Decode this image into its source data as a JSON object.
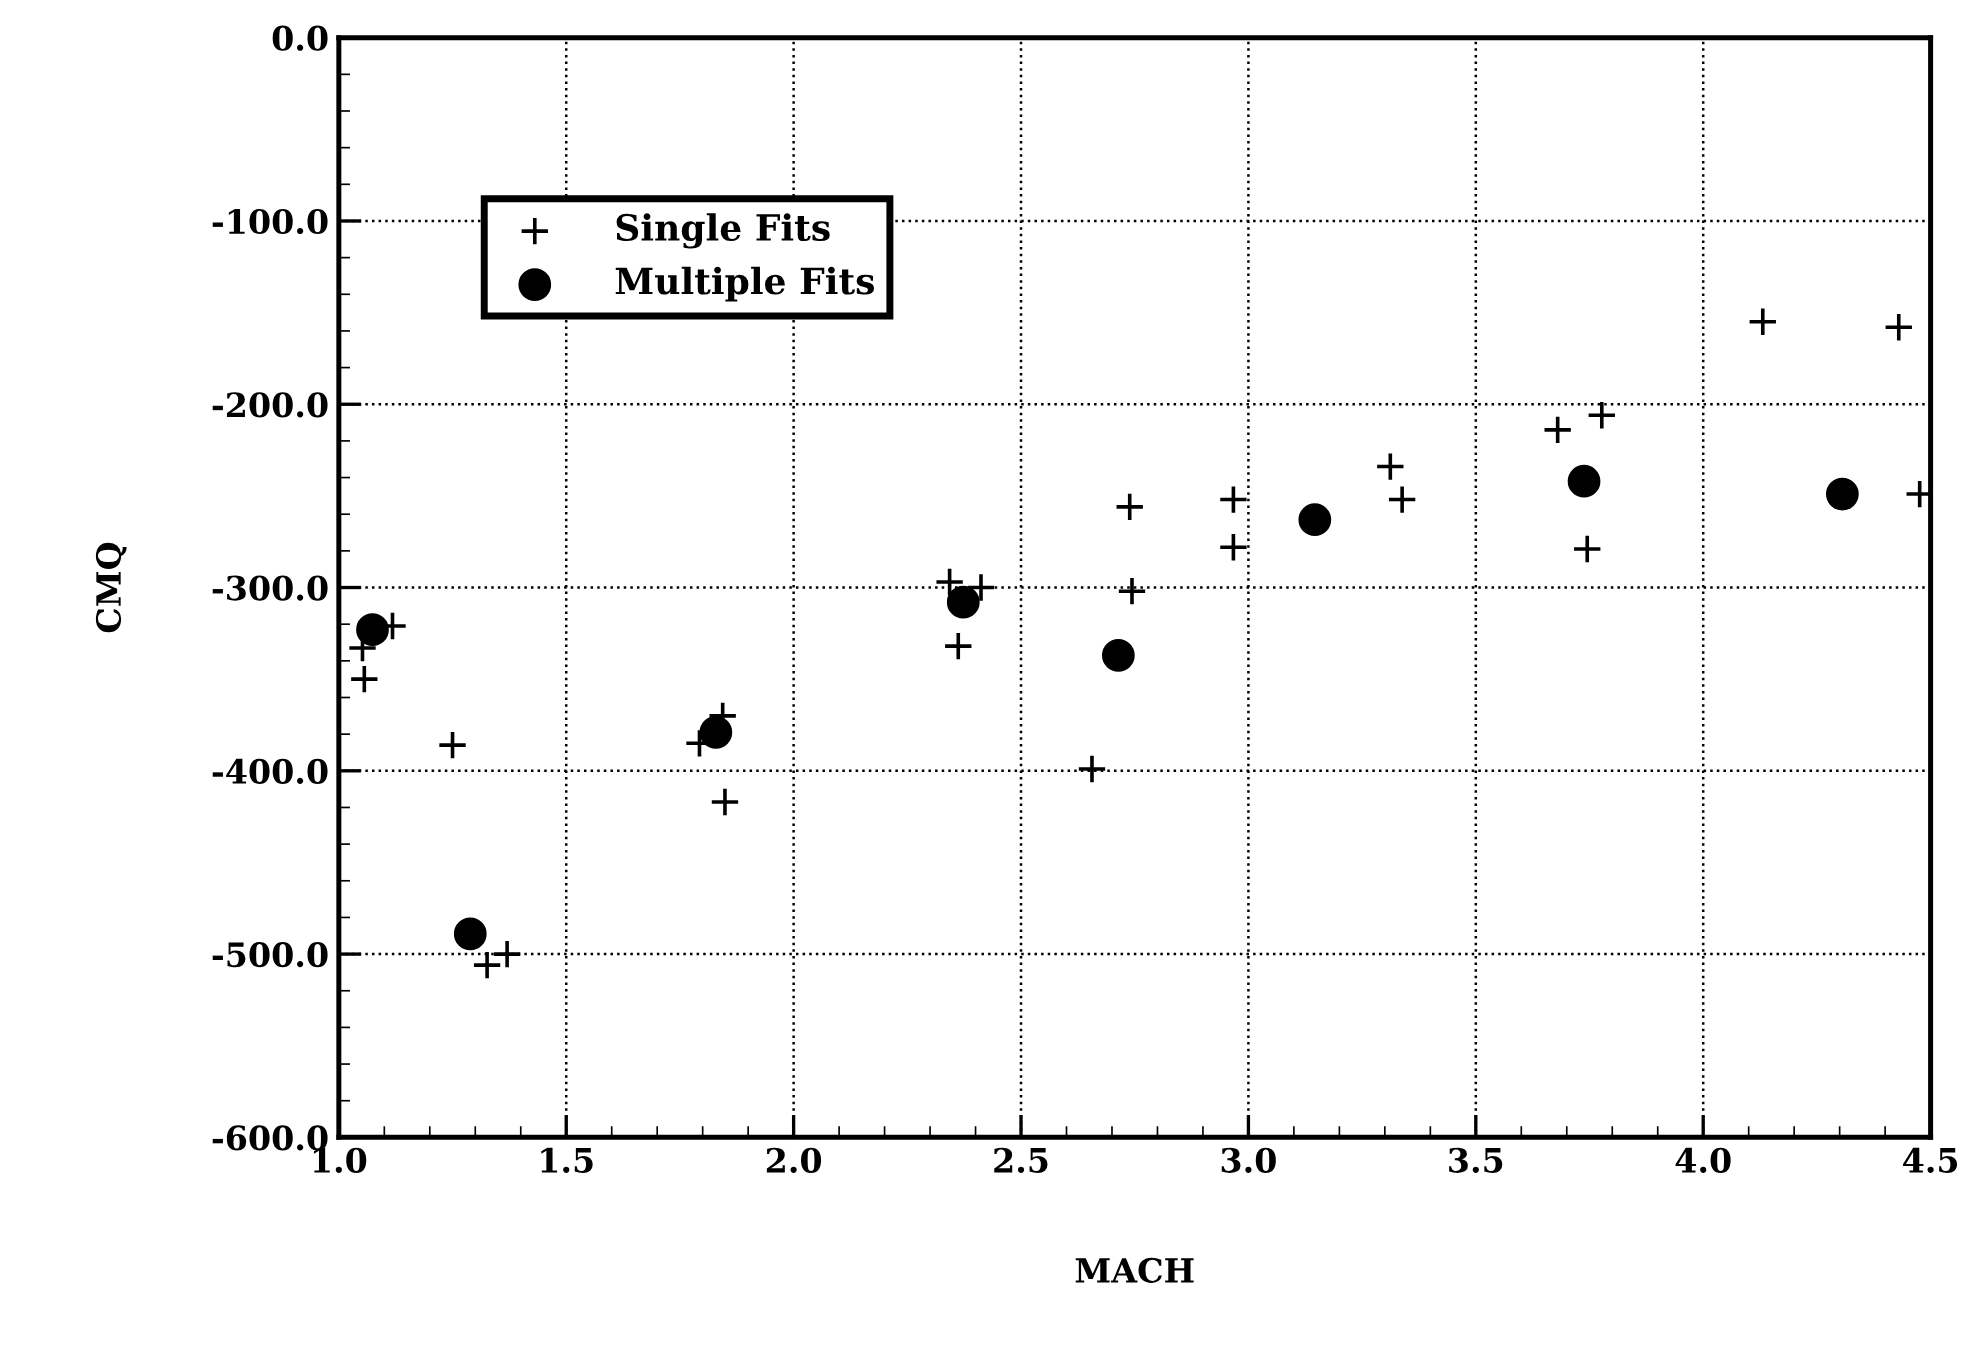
{
  "chart_data": {
    "type": "scatter",
    "xlabel": "MACH",
    "ylabel": "CMQ",
    "xlim": [
      1.0,
      4.5
    ],
    "ylim": [
      -600,
      0
    ],
    "xticks": [
      {
        "value": 1.0,
        "label": "1.0"
      },
      {
        "value": 1.5,
        "label": "1.5"
      },
      {
        "value": 2.0,
        "label": "2.0"
      },
      {
        "value": 2.5,
        "label": "2.5"
      },
      {
        "value": 3.0,
        "label": "3.0"
      },
      {
        "value": 3.5,
        "label": "3.5"
      },
      {
        "value": 4.0,
        "label": "4.0"
      },
      {
        "value": 4.5,
        "label": "4.5"
      }
    ],
    "yticks": [
      {
        "value": -600,
        "label": "-600.0"
      },
      {
        "value": -500,
        "label": "-500.0"
      },
      {
        "value": -400,
        "label": "-400.0"
      },
      {
        "value": -300,
        "label": "-300.0"
      },
      {
        "value": -200,
        "label": "-200.0"
      },
      {
        "value": -100,
        "label": "-100.0"
      },
      {
        "value": 0,
        "label": "0.0"
      }
    ],
    "grid": true,
    "legend": "top left",
    "series": [
      {
        "name": "Single Fits",
        "color": "#000000",
        "marker": "cross",
        "x": [
          1.118,
          1.052,
          1.056,
          1.25,
          1.326,
          1.37,
          1.844,
          1.793,
          1.849,
          2.343,
          2.412,
          2.362,
          2.739,
          2.744,
          2.656,
          2.967,
          2.967,
          3.312,
          3.338,
          3.68,
          3.777,
          3.745,
          4.131,
          4.43,
          4.476
        ],
        "values": [
          -321,
          -333,
          -350,
          -386,
          -506,
          -500,
          -370,
          -385,
          -417,
          -297,
          -300,
          -332,
          -256,
          -302,
          -399,
          -252,
          -278,
          -234,
          -252,
          -214,
          -206,
          -279,
          -155,
          -158,
          -249
        ]
      },
      {
        "name": "Multiple Fits",
        "color": "#000000",
        "marker": "circle",
        "x": [
          1.074,
          1.289,
          1.829,
          2.373,
          2.714,
          3.146,
          3.738,
          4.306
        ],
        "values": [
          -323,
          -489,
          -379,
          -308,
          -337,
          -263,
          -242,
          -249
        ]
      }
    ]
  }
}
